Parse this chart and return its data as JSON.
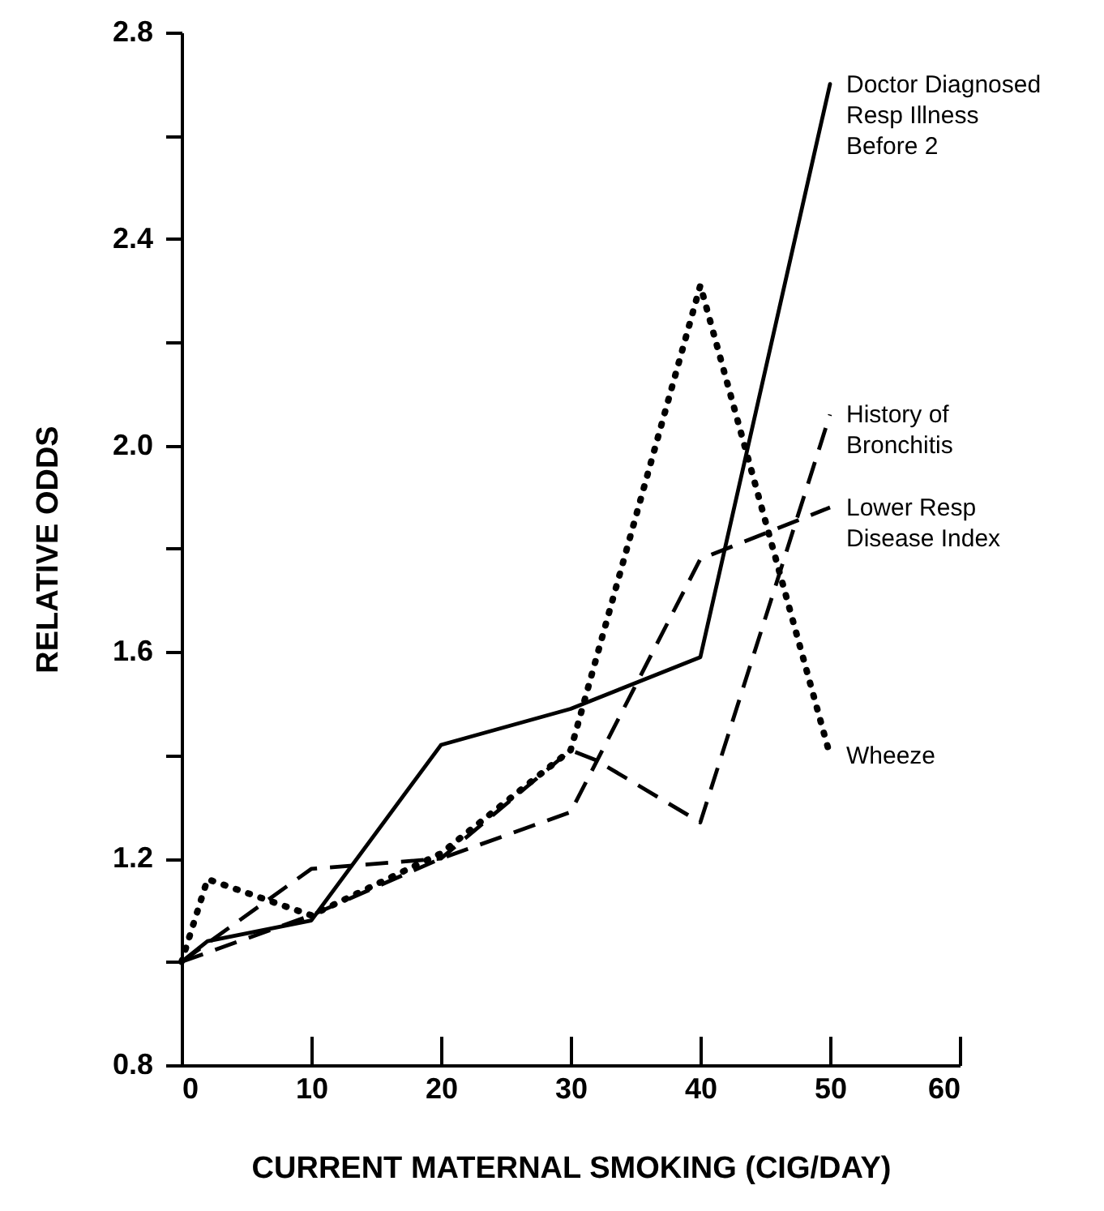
{
  "chart_data": {
    "type": "line",
    "xlabel": "CURRENT MATERNAL SMOKING (CIG/DAY)",
    "ylabel": "RELATIVE ODDS",
    "xlim": [
      0,
      60
    ],
    "xticks": [
      0,
      10,
      20,
      30,
      40,
      50,
      60
    ],
    "ylim": [
      0.8,
      2.8
    ],
    "yticks": [
      0.8,
      {
        "value": 1.0,
        "label": null
      },
      1.2,
      {
        "value": 1.4,
        "label": null
      },
      1.6,
      {
        "value": 1.8,
        "label": null
      },
      {
        "value": 2.0,
        "label": "2.0"
      },
      {
        "value": 2.2,
        "label": null
      },
      2.4,
      {
        "value": 2.6,
        "label": null
      },
      2.8
    ],
    "grid": false,
    "marker": "none",
    "series": [
      {
        "name": "Doctor Diagnosed\nResp Illness\nBefore 2",
        "color": "#000000",
        "line_style": "solid",
        "x": [
          0,
          2,
          10,
          20,
          30,
          40,
          50
        ],
        "values": [
          1.0,
          1.04,
          1.08,
          1.42,
          1.49,
          1.59,
          2.7
        ]
      },
      {
        "name": "History of\nBronchitis",
        "color": "#000000",
        "line_style": "dashed",
        "x": [
          0,
          10,
          20,
          30,
          32,
          40,
          50
        ],
        "values": [
          1.0,
          1.18,
          1.2,
          1.41,
          1.39,
          1.27,
          2.06
        ]
      },
      {
        "name": "Lower Resp\nDisease Index",
        "color": "#000000",
        "line_style": "dashed",
        "x": [
          0,
          10,
          20,
          30,
          40,
          50
        ],
        "values": [
          1.0,
          1.09,
          1.2,
          1.29,
          1.78,
          1.88
        ]
      },
      {
        "name": "Wheeze",
        "color": "#000000",
        "line_style": "dotted",
        "x": [
          0,
          2,
          10,
          20,
          30,
          40,
          50
        ],
        "values": [
          1.0,
          1.16,
          1.09,
          1.21,
          1.41,
          2.31,
          1.4
        ]
      }
    ]
  }
}
